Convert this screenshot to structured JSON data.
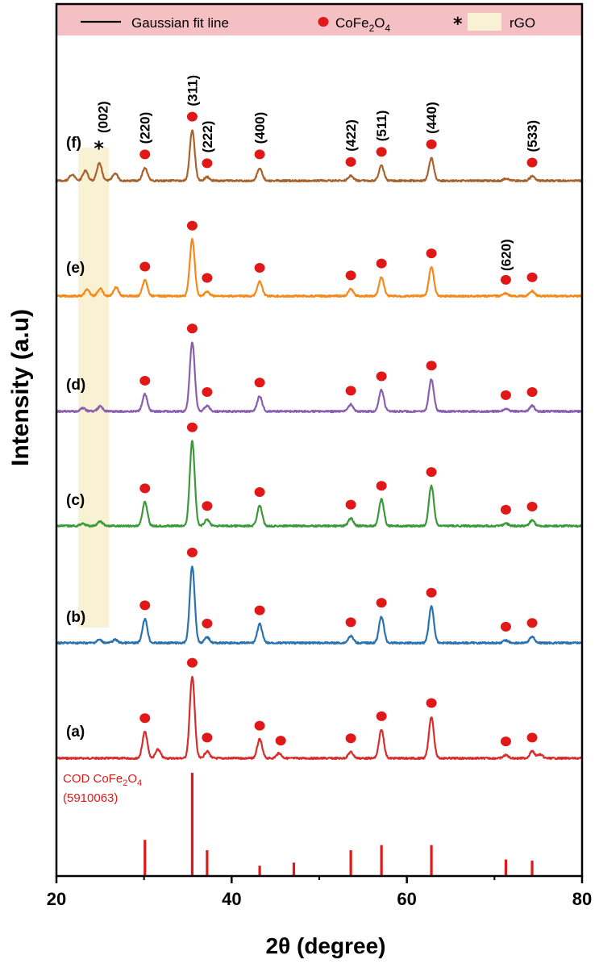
{
  "chart_data": {
    "type": "line",
    "xlabel": "2θ (degree)",
    "ylabel": "Intensity (a.u)",
    "xlim": [
      20,
      80
    ],
    "xticks": [
      "20",
      "40",
      "60",
      "80"
    ],
    "legend": {
      "placement": "top",
      "background": "#f4c0c4",
      "entries": [
        {
          "label": "Gaussian fit line",
          "marker": "line"
        },
        {
          "label": "CoFe2O4",
          "marker": "dot",
          "color": "#e01818"
        },
        {
          "label": "rGO",
          "marker": "asterisk-band",
          "color": "#f8f1d4"
        }
      ]
    },
    "rgo_band": {
      "x": [
        22.5,
        26.0
      ],
      "color": "#f8f1d4"
    },
    "peak_positions": [
      30.1,
      35.5,
      37.2,
      43.2,
      53.6,
      57.1,
      62.8,
      71.3,
      74.3
    ],
    "series": [
      {
        "name": "(a)",
        "color": "#d62d2d",
        "peaks": [
          [
            30.1,
            42
          ],
          [
            31.6,
            14
          ],
          [
            35.5,
            130
          ],
          [
            37.2,
            11
          ],
          [
            43.2,
            30
          ],
          [
            45.4,
            8
          ],
          [
            53.6,
            10
          ],
          [
            57.1,
            45
          ],
          [
            62.8,
            66
          ],
          [
            71.3,
            5
          ],
          [
            74.3,
            11
          ],
          [
            75.2,
            6
          ]
        ],
        "markers": [
          30.1,
          35.5,
          37.2,
          43.2,
          45.6,
          53.6,
          57.1,
          62.8,
          71.3,
          74.3
        ]
      },
      {
        "name": "(b)",
        "color": "#2a72b0",
        "peaks": [
          [
            24.9,
            5
          ],
          [
            26.7,
            5
          ],
          [
            30.1,
            38
          ],
          [
            35.5,
            122
          ],
          [
            37.2,
            9
          ],
          [
            43.2,
            30
          ],
          [
            53.6,
            11
          ],
          [
            57.1,
            42
          ],
          [
            62.8,
            58
          ],
          [
            71.3,
            4
          ],
          [
            74.3,
            10
          ]
        ],
        "markers": [
          30.1,
          35.5,
          37.2,
          43.2,
          53.6,
          57.1,
          62.8,
          71.3,
          74.3
        ]
      },
      {
        "name": "(c)",
        "color": "#3a9a3a",
        "peaks": [
          [
            23.0,
            4
          ],
          [
            25.0,
            7
          ],
          [
            30.1,
            38
          ],
          [
            35.5,
            135
          ],
          [
            37.2,
            10
          ],
          [
            43.2,
            32
          ],
          [
            53.6,
            12
          ],
          [
            57.1,
            42
          ],
          [
            62.8,
            64
          ],
          [
            71.3,
            4
          ],
          [
            74.3,
            9
          ]
        ],
        "markers": [
          30.1,
          35.5,
          37.2,
          43.2,
          53.6,
          57.1,
          62.8,
          71.3,
          74.3
        ]
      },
      {
        "name": "(d)",
        "color": "#8a5fab",
        "peaks": [
          [
            23.0,
            5
          ],
          [
            25.0,
            8
          ],
          [
            30.1,
            27
          ],
          [
            35.5,
            110
          ],
          [
            37.2,
            9
          ],
          [
            43.2,
            24
          ],
          [
            53.6,
            11
          ],
          [
            57.1,
            34
          ],
          [
            62.8,
            51
          ],
          [
            71.3,
            4
          ],
          [
            74.3,
            9
          ]
        ],
        "markers": [
          30.1,
          35.5,
          37.2,
          43.2,
          53.6,
          57.1,
          62.8,
          71.3,
          74.3
        ]
      },
      {
        "name": "(e)",
        "color": "#f58a1a",
        "peaks": [
          [
            23.5,
            10
          ],
          [
            25.0,
            12
          ],
          [
            26.8,
            14
          ],
          [
            30.1,
            25
          ],
          [
            35.5,
            90
          ],
          [
            37.2,
            7
          ],
          [
            43.2,
            23
          ],
          [
            53.6,
            11
          ],
          [
            57.1,
            30
          ],
          [
            62.8,
            46
          ],
          [
            71.3,
            4
          ],
          [
            74.3,
            8
          ]
        ],
        "markers": [
          30.1,
          35.5,
          37.2,
          43.2,
          53.6,
          57.1,
          62.8,
          71.3,
          74.3
        ]
      },
      {
        "name": "(f)",
        "color": "#a8632d",
        "peaks": [
          [
            21.8,
            10
          ],
          [
            23.3,
            16
          ],
          [
            24.9,
            28
          ],
          [
            26.7,
            12
          ],
          [
            30.1,
            20
          ],
          [
            35.5,
            80
          ],
          [
            37.2,
            6
          ],
          [
            43.2,
            20
          ],
          [
            53.6,
            8
          ],
          [
            57.1,
            24
          ],
          [
            62.8,
            36
          ],
          [
            71.3,
            3
          ],
          [
            74.3,
            7
          ]
        ],
        "markers": [
          30.1,
          35.5,
          37.2,
          43.2,
          53.6,
          57.1,
          62.8,
          74.3
        ]
      }
    ],
    "hkl_labels": [
      {
        "text": "(002)",
        "x": 25.3
      },
      {
        "text": "(220)",
        "x": 30.1
      },
      {
        "text": "(311)",
        "x": 35.5
      },
      {
        "text": "(222)",
        "x": 37.2
      },
      {
        "text": "(400)",
        "x": 43.2
      },
      {
        "text": "(422)",
        "x": 53.6
      },
      {
        "text": "(511)",
        "x": 57.1
      },
      {
        "text": "(440)",
        "x": 62.8
      },
      {
        "text": "(620)",
        "x": 71.3
      },
      {
        "text": "(533)",
        "x": 74.3
      }
    ],
    "reference": {
      "label_line1": "COD CoFe2O4",
      "label_line2": "(5910063)",
      "color": "#e01818",
      "lines": [
        [
          30.1,
          35
        ],
        [
          35.5,
          100
        ],
        [
          37.2,
          25
        ],
        [
          43.2,
          10
        ],
        [
          47.1,
          13
        ],
        [
          53.6,
          25
        ],
        [
          57.1,
          30
        ],
        [
          62.8,
          30
        ],
        [
          71.3,
          16
        ],
        [
          74.3,
          15
        ]
      ]
    }
  }
}
